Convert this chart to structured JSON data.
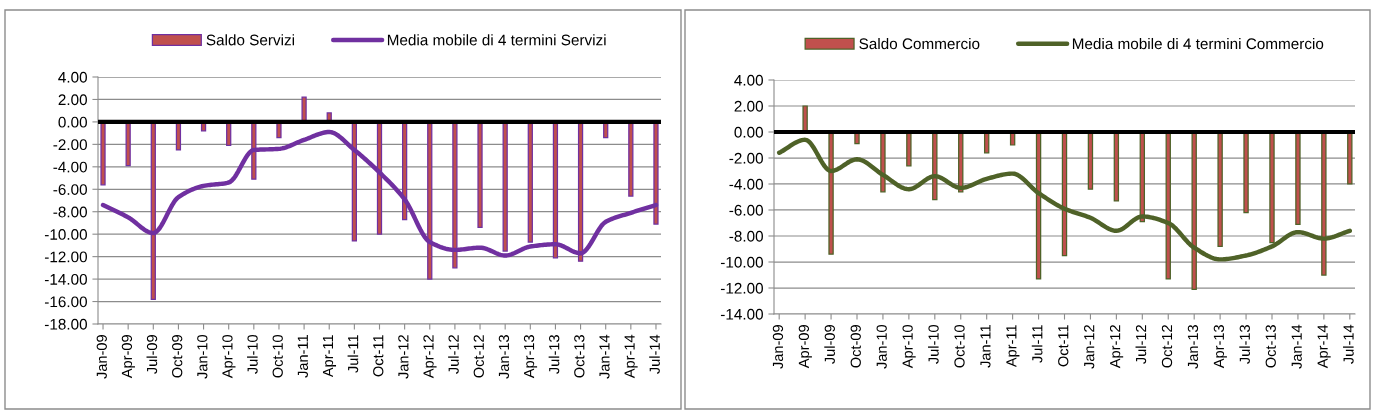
{
  "chart_data": [
    {
      "type": "bar",
      "categories": [
        "Jan-09",
        "Apr-09",
        "Jul-09",
        "Oct-09",
        "Jan-10",
        "Apr-10",
        "Jul-10",
        "Oct-10",
        "Jan-11",
        "Apr-11",
        "Jul-11",
        "Oct-11",
        "Jan-12",
        "Apr-12",
        "Jul-12",
        "Oct-12",
        "Jan-13",
        "Apr-13",
        "Jul-13",
        "Oct-13",
        "Jan-14",
        "Apr-14",
        "Jul-14"
      ],
      "series": [
        {
          "name": "Saldo Servizi",
          "color": "#c0504d",
          "values": [
            -5.6,
            -3.9,
            -15.8,
            -2.5,
            -0.8,
            -2.1,
            -5.1,
            -1.4,
            2.2,
            0.8,
            -10.6,
            -10.0,
            -8.7,
            -14.0,
            -13.0,
            -9.4,
            -11.5,
            -10.7,
            -12.1,
            -12.4,
            -1.4,
            -6.6,
            -9.1
          ]
        },
        {
          "name": "Media mobile di 4 termini Servizi",
          "type": "line",
          "color": "#7030a0",
          "values": [
            -7.4,
            -8.5,
            -9.9,
            -6.7,
            -5.7,
            -5.4,
            -2.5,
            -2.4,
            -1.6,
            -0.9,
            -2.5,
            -4.5,
            -6.9,
            -10.7,
            -11.4,
            -11.2,
            -11.9,
            -11.1,
            -10.9,
            -11.7,
            -8.9,
            -8.1,
            -7.4
          ]
        }
      ],
      "ylim": [
        -18,
        4
      ],
      "yticks": [
        {
          "value": -18,
          "label": "-18.00"
        },
        {
          "value": -16,
          "label": "-16.00"
        },
        {
          "value": -14,
          "label": "-14.00"
        },
        {
          "value": -12,
          "label": "-12.00"
        },
        {
          "value": -10,
          "label": "-10.00"
        },
        {
          "value": -8,
          "label": "-8.00"
        },
        {
          "value": -6,
          "label": "-6.00"
        },
        {
          "value": -4,
          "label": "-4.00"
        },
        {
          "value": -2,
          "label": "-2.00"
        },
        {
          "value": 0,
          "label": "0.00"
        },
        {
          "value": 2,
          "label": "2.00"
        },
        {
          "value": 4,
          "label": "4.00"
        }
      ],
      "grid": "y",
      "legend": "top",
      "ref_lines": [
        {
          "axis": "y",
          "value": 0,
          "color": "#000000"
        }
      ]
    },
    {
      "type": "bar",
      "categories": [
        "Jan-09",
        "Apr-09",
        "Jul-09",
        "Oct-09",
        "Jan-10",
        "Apr-10",
        "Jul-10",
        "Oct-10",
        "Jan-11",
        "Apr-11",
        "Jul-11",
        "Oct-11",
        "Jan-12",
        "Apr-12",
        "Jul-12",
        "Oct-12",
        "Jan-13",
        "Apr-13",
        "Jul-13",
        "Oct-13",
        "Jan-14",
        "Apr-14",
        "Jul-14"
      ],
      "series": [
        {
          "name": "Saldo Commercio",
          "color": "#c0504d",
          "values": [
            null,
            2.0,
            -9.4,
            -0.9,
            -4.6,
            -2.6,
            -5.2,
            -4.6,
            -1.6,
            -1.0,
            -11.3,
            -9.5,
            -4.4,
            -5.3,
            -6.9,
            -11.3,
            -12.1,
            -8.8,
            -6.2,
            -8.5,
            -7.1,
            -11.0,
            -4.0
          ]
        },
        {
          "name": "Media mobile di 4 termini Commercio",
          "type": "line",
          "color": "#4f6228",
          "values": [
            -1.6,
            -0.6,
            -3.0,
            -2.1,
            -3.3,
            -4.4,
            -3.4,
            -4.3,
            -3.6,
            -3.2,
            -4.7,
            -5.9,
            -6.6,
            -7.6,
            -6.5,
            -7.0,
            -8.9,
            -9.8,
            -9.5,
            -8.8,
            -7.7,
            -8.2,
            -7.6
          ]
        }
      ],
      "ylim": [
        -14,
        4
      ],
      "yticks": [
        {
          "value": -14,
          "label": "-14.00"
        },
        {
          "value": -12,
          "label": "-12.00"
        },
        {
          "value": -10,
          "label": "-10.00"
        },
        {
          "value": -8,
          "label": "-8.00"
        },
        {
          "value": -6,
          "label": "-6.00"
        },
        {
          "value": -4,
          "label": "-4.00"
        },
        {
          "value": -2,
          "label": "-2.00"
        },
        {
          "value": 0,
          "label": "0.00"
        },
        {
          "value": 2,
          "label": "2.00"
        },
        {
          "value": 4,
          "label": "4.00"
        }
      ],
      "grid": "y",
      "legend": "top",
      "ref_lines": [
        {
          "axis": "y",
          "value": 0,
          "color": "#000000"
        }
      ]
    }
  ]
}
